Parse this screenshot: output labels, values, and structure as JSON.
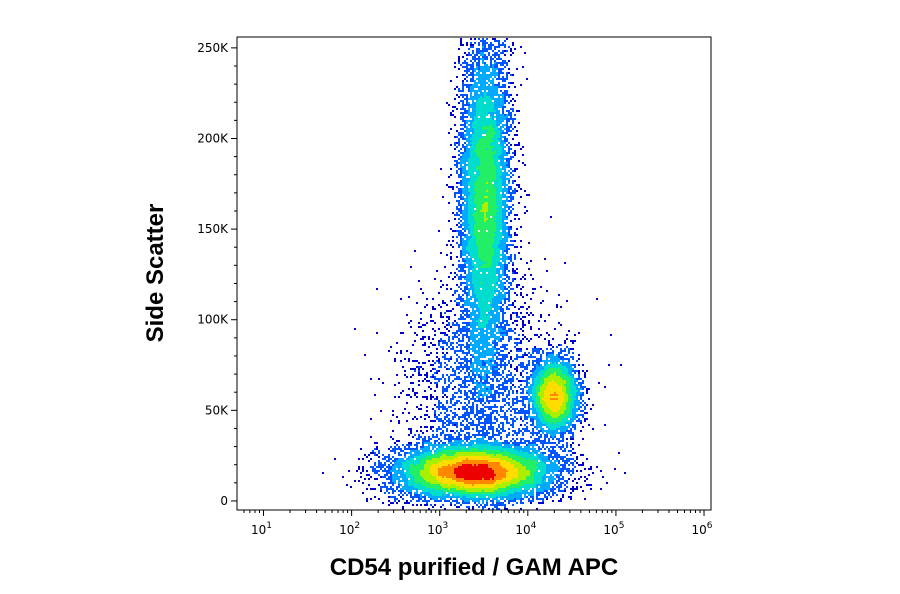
{
  "chart_data": {
    "type": "scatter",
    "plot_style": "density dot plot (flow cytometry)",
    "xlabel": "CD54 purified / GAM APC",
    "ylabel": "Side Scatter",
    "x_scale": "log",
    "xlim": [
      5,
      1200000
    ],
    "ylim": [
      -5000,
      256000
    ],
    "x_ticks": [
      {
        "base": "10",
        "exp": "1",
        "value": 10
      },
      {
        "base": "10",
        "exp": "2",
        "value": 100
      },
      {
        "base": "10",
        "exp": "3",
        "value": 1000
      },
      {
        "base": "10",
        "exp": "4",
        "value": 10000
      },
      {
        "base": "10",
        "exp": "5",
        "value": 100000
      },
      {
        "base": "10",
        "exp": "6",
        "value": 1000000
      }
    ],
    "y_ticks": [
      {
        "label": "0",
        "value": 0
      },
      {
        "label": "50K",
        "value": 50000
      },
      {
        "label": "100K",
        "value": 100000
      },
      {
        "label": "150K",
        "value": 150000
      },
      {
        "label": "200K",
        "value": 200000
      },
      {
        "label": "250K",
        "value": 250000
      }
    ],
    "density_colors": [
      "#0000cc",
      "#0055ff",
      "#00aaff",
      "#00ddcc",
      "#22ee66",
      "#aaee00",
      "#ffdd00",
      "#ff8800",
      "#ee0000"
    ],
    "populations": [
      {
        "x_center": 2500,
        "y_center": 16000,
        "x_spread_decades": 0.42,
        "y_spread": 7000,
        "weight": 0.45
      },
      {
        "x_center": 3300,
        "y_center": 165000,
        "x_spread_decades": 0.14,
        "y_spread": 45000,
        "weight": 0.33
      },
      {
        "x_center": 20000,
        "y_center": 58000,
        "x_spread_decades": 0.13,
        "y_spread": 10000,
        "weight": 0.14
      },
      {
        "x_center": 3000,
        "y_center": 60000,
        "x_spread_decades": 0.45,
        "y_spread": 30000,
        "weight": 0.08
      }
    ]
  }
}
